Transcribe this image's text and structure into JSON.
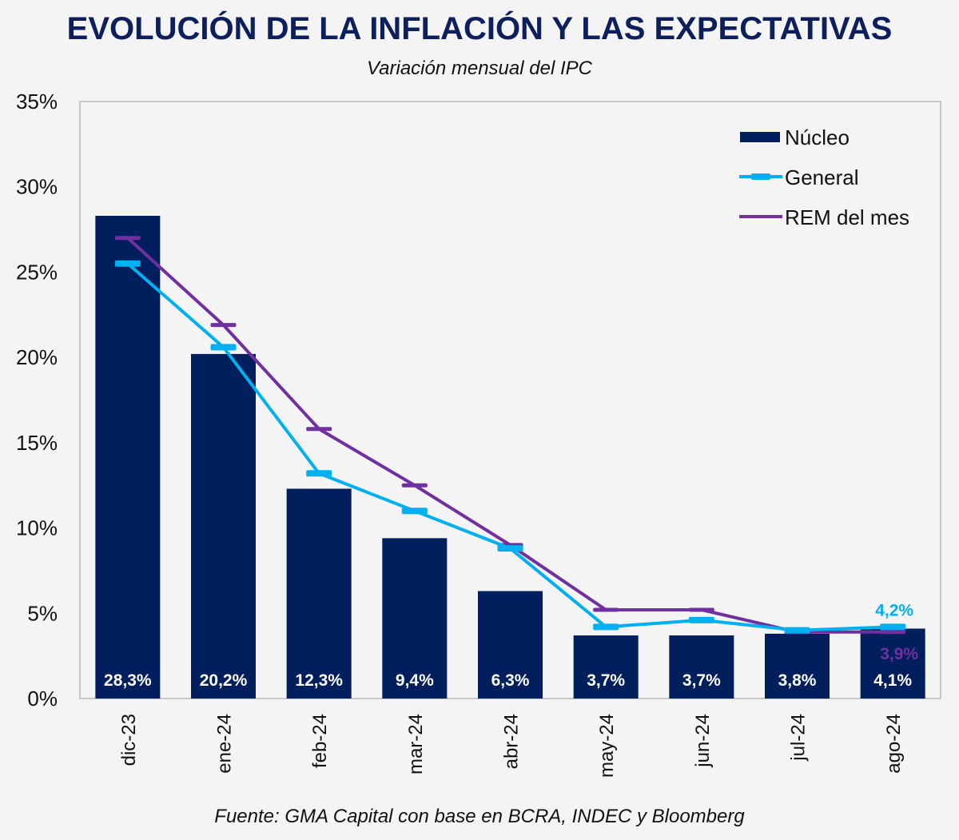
{
  "header": {
    "title": "EVOLUCIÓN DE LA INFLACIÓN Y LAS EXPECTATIVAS",
    "subtitle": "Variación mensual del IPC"
  },
  "footer": {
    "source": "Fuente: GMA Capital con base en BCRA, INDEC y Bloomberg"
  },
  "colors": {
    "nucleo": "#001f5c",
    "general": "#00b0f0",
    "rem": "#7030a0",
    "title": "#0d1f5c"
  },
  "chart_data": {
    "type": "bar",
    "title": "EVOLUCIÓN DE LA INFLACIÓN Y LAS EXPECTATIVAS",
    "subtitle": "Variación mensual del IPC",
    "xlabel": "",
    "ylabel": "",
    "ylim": [
      0,
      35
    ],
    "yticks": [
      0,
      5,
      10,
      15,
      20,
      25,
      30,
      35
    ],
    "ytick_labels": [
      "0%",
      "5%",
      "10%",
      "15%",
      "20%",
      "25%",
      "30%",
      "35%"
    ],
    "grid": false,
    "legend_position": "top-right",
    "categories": [
      "dic-23",
      "ene-24",
      "feb-24",
      "mar-24",
      "abr-24",
      "may-24",
      "jun-24",
      "jul-24",
      "ago-24"
    ],
    "series": [
      {
        "name": "Núcleo",
        "type": "bar",
        "values": [
          28.3,
          20.2,
          12.3,
          9.4,
          6.3,
          3.7,
          3.7,
          3.8,
          4.1
        ],
        "labels": [
          "28,3%",
          "20,2%",
          "12,3%",
          "9,4%",
          "6,3%",
          "3,7%",
          "3,7%",
          "3,8%",
          "4,1%"
        ]
      },
      {
        "name": "General",
        "type": "line",
        "values": [
          25.5,
          20.6,
          13.2,
          11.0,
          8.8,
          4.2,
          4.6,
          4.0,
          4.2
        ],
        "last_label": "4,2%"
      },
      {
        "name": "REM del mes",
        "type": "line",
        "values": [
          27.0,
          21.9,
          15.8,
          12.5,
          9.0,
          5.2,
          5.2,
          3.9,
          3.9
        ],
        "last_label": "3,9%"
      }
    ]
  }
}
